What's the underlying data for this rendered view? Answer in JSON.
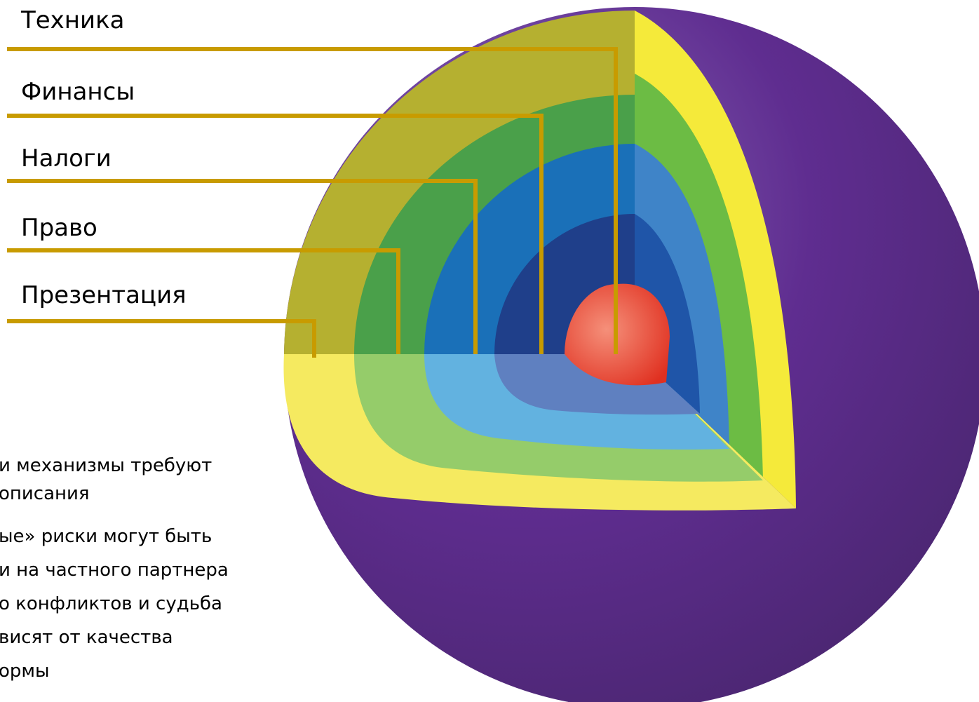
{
  "layers": [
    "Техника",
    "Финансы",
    "Налоги",
    "Право",
    "Презентация"
  ],
  "body": {
    "lines": [
      "и механизмы  требуют",
      "описания",
      "ые» риски могут быть",
      "и на частного партнера",
      "о конфликтов и судьба",
      "висят от качества",
      "ормы"
    ]
  }
}
